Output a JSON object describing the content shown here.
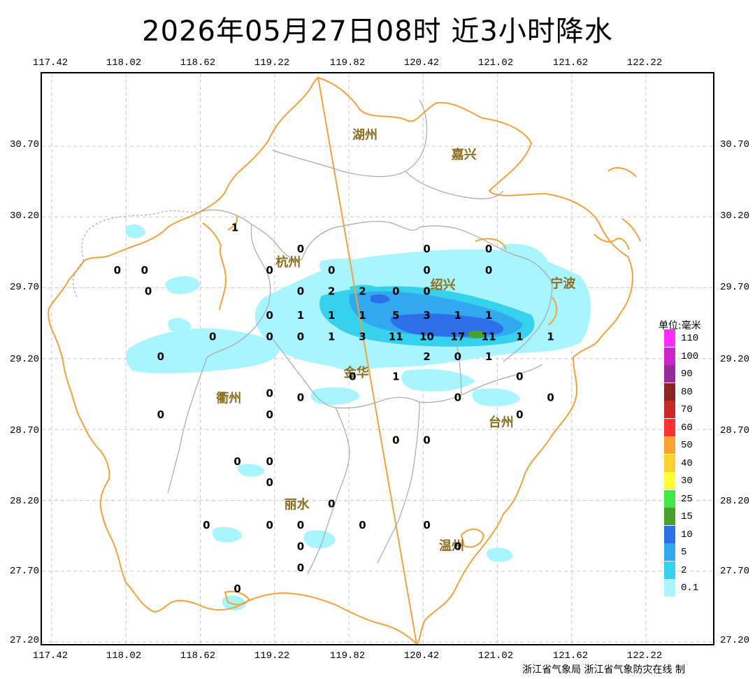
{
  "title": "2026年05月27日08时 近3小时降水",
  "lon_ticks": [
    "117.42",
    "118.02",
    "118.62",
    "119.22",
    "119.82",
    "120.42",
    "121.02",
    "121.62",
    "122.22"
  ],
  "lat_ticks": [
    "30.70",
    "30.20",
    "29.70",
    "29.20",
    "28.70",
    "28.20",
    "27.70",
    "27.20"
  ],
  "cities": [
    {
      "name": "湖州",
      "lon": 119.95,
      "lat": 30.75
    },
    {
      "name": "嘉兴",
      "lon": 120.75,
      "lat": 30.61
    },
    {
      "name": "杭州",
      "lon": 119.33,
      "lat": 29.85
    },
    {
      "name": "绍兴",
      "lon": 120.58,
      "lat": 29.69
    },
    {
      "name": "宁波",
      "lon": 121.55,
      "lat": 29.7
    },
    {
      "name": "金华",
      "lon": 119.88,
      "lat": 29.07
    },
    {
      "name": "衢州",
      "lon": 118.85,
      "lat": 28.89
    },
    {
      "name": "台州",
      "lon": 121.05,
      "lat": 28.72
    },
    {
      "name": "丽水",
      "lon": 119.4,
      "lat": 28.14
    },
    {
      "name": "温州",
      "lon": 120.65,
      "lat": 27.85
    }
  ],
  "stations": [
    {
      "v": "1",
      "lon": 118.9,
      "lat": 30.1
    },
    {
      "v": "0",
      "lon": 119.43,
      "lat": 29.95
    },
    {
      "v": "0",
      "lon": 120.45,
      "lat": 29.95
    },
    {
      "v": "0",
      "lon": 120.95,
      "lat": 29.95
    },
    {
      "v": "0",
      "lon": 117.95,
      "lat": 29.8
    },
    {
      "v": "0",
      "lon": 118.17,
      "lat": 29.8
    },
    {
      "v": "0",
      "lon": 119.18,
      "lat": 29.8
    },
    {
      "v": "0",
      "lon": 119.68,
      "lat": 29.8
    },
    {
      "v": "0",
      "lon": 120.45,
      "lat": 29.8
    },
    {
      "v": "0",
      "lon": 120.95,
      "lat": 29.8
    },
    {
      "v": "0",
      "lon": 118.2,
      "lat": 29.65
    },
    {
      "v": "0",
      "lon": 119.43,
      "lat": 29.65
    },
    {
      "v": "2",
      "lon": 119.68,
      "lat": 29.65
    },
    {
      "v": "2",
      "lon": 119.93,
      "lat": 29.65
    },
    {
      "v": "0",
      "lon": 120.2,
      "lat": 29.65
    },
    {
      "v": "0",
      "lon": 120.45,
      "lat": 29.65
    },
    {
      "v": "0",
      "lon": 119.18,
      "lat": 29.48
    },
    {
      "v": "1",
      "lon": 119.43,
      "lat": 29.48
    },
    {
      "v": "1",
      "lon": 119.68,
      "lat": 29.48
    },
    {
      "v": "1",
      "lon": 119.93,
      "lat": 29.48
    },
    {
      "v": "5",
      "lon": 120.2,
      "lat": 29.48
    },
    {
      "v": "3",
      "lon": 120.45,
      "lat": 29.48
    },
    {
      "v": "1",
      "lon": 120.7,
      "lat": 29.48
    },
    {
      "v": "1",
      "lon": 120.95,
      "lat": 29.48
    },
    {
      "v": "0",
      "lon": 118.72,
      "lat": 29.33
    },
    {
      "v": "0",
      "lon": 119.18,
      "lat": 29.33
    },
    {
      "v": "0",
      "lon": 119.43,
      "lat": 29.33
    },
    {
      "v": "1",
      "lon": 119.68,
      "lat": 29.33
    },
    {
      "v": "3",
      "lon": 119.93,
      "lat": 29.33
    },
    {
      "v": "11",
      "lon": 120.2,
      "lat": 29.33
    },
    {
      "v": "10",
      "lon": 120.45,
      "lat": 29.33
    },
    {
      "v": "17",
      "lon": 120.7,
      "lat": 29.33
    },
    {
      "v": "11",
      "lon": 120.95,
      "lat": 29.33
    },
    {
      "v": "1",
      "lon": 121.2,
      "lat": 29.33
    },
    {
      "v": "1",
      "lon": 121.45,
      "lat": 29.33
    },
    {
      "v": "0",
      "lon": 118.3,
      "lat": 29.19
    },
    {
      "v": "2",
      "lon": 120.45,
      "lat": 29.19
    },
    {
      "v": "0",
      "lon": 120.7,
      "lat": 29.19
    },
    {
      "v": "1",
      "lon": 120.95,
      "lat": 29.19
    },
    {
      "v": "0",
      "lon": 119.85,
      "lat": 29.05
    },
    {
      "v": "1",
      "lon": 120.2,
      "lat": 29.05
    },
    {
      "v": "0",
      "lon": 121.2,
      "lat": 29.05
    },
    {
      "v": "0",
      "lon": 119.18,
      "lat": 28.93
    },
    {
      "v": "0",
      "lon": 119.43,
      "lat": 28.9
    },
    {
      "v": "0",
      "lon": 120.7,
      "lat": 28.9
    },
    {
      "v": "0",
      "lon": 121.45,
      "lat": 28.9
    },
    {
      "v": "0",
      "lon": 118.3,
      "lat": 28.78
    },
    {
      "v": "0",
      "lon": 119.18,
      "lat": 28.78
    },
    {
      "v": "0",
      "lon": 121.2,
      "lat": 28.78
    },
    {
      "v": "0",
      "lon": 120.2,
      "lat": 28.6
    },
    {
      "v": "0",
      "lon": 120.45,
      "lat": 28.6
    },
    {
      "v": "0",
      "lon": 118.92,
      "lat": 28.45
    },
    {
      "v": "0",
      "lon": 119.18,
      "lat": 28.45
    },
    {
      "v": "0",
      "lon": 119.18,
      "lat": 28.3
    },
    {
      "v": "0",
      "lon": 119.68,
      "lat": 28.15
    },
    {
      "v": "0",
      "lon": 118.67,
      "lat": 28.0
    },
    {
      "v": "0",
      "lon": 119.18,
      "lat": 28.0
    },
    {
      "v": "0",
      "lon": 119.43,
      "lat": 28.0
    },
    {
      "v": "0",
      "lon": 119.93,
      "lat": 28.0
    },
    {
      "v": "0",
      "lon": 120.45,
      "lat": 28.0
    },
    {
      "v": "0",
      "lon": 119.43,
      "lat": 27.85
    },
    {
      "v": "0",
      "lon": 120.7,
      "lat": 27.85
    },
    {
      "v": "0",
      "lon": 119.43,
      "lat": 27.7
    },
    {
      "v": "0",
      "lon": 118.92,
      "lat": 27.55
    }
  ],
  "legend": {
    "title": "单位:毫米",
    "items": [
      {
        "label": "110",
        "color": "#ff2bff"
      },
      {
        "label": "100",
        "color": "#cc22cc"
      },
      {
        "label": "90",
        "color": "#9a2a9a"
      },
      {
        "label": "80",
        "color": "#8b2323"
      },
      {
        "label": "70",
        "color": "#c62828"
      },
      {
        "label": "60",
        "color": "#ff3030"
      },
      {
        "label": "50",
        "color": "#ffa033"
      },
      {
        "label": "40",
        "color": "#ffd030"
      },
      {
        "label": "30",
        "color": "#ffff33"
      },
      {
        "label": "25",
        "color": "#44e844"
      },
      {
        "label": "15",
        "color": "#4aa02c"
      },
      {
        "label": "10",
        "color": "#2d6fe8"
      },
      {
        "label": "5",
        "color": "#32a9ee"
      },
      {
        "label": "2",
        "color": "#36d1ec"
      },
      {
        "label": "0.1",
        "color": "#a9f5ff"
      }
    ]
  },
  "colors": {
    "province_border": "#f2a23c",
    "city_border": "#a8a8a8",
    "grid": "#c8c8c8",
    "city_label": "#8a6d1f"
  },
  "footer": "浙江省气象局 浙江省气象防灾在线 制"
}
